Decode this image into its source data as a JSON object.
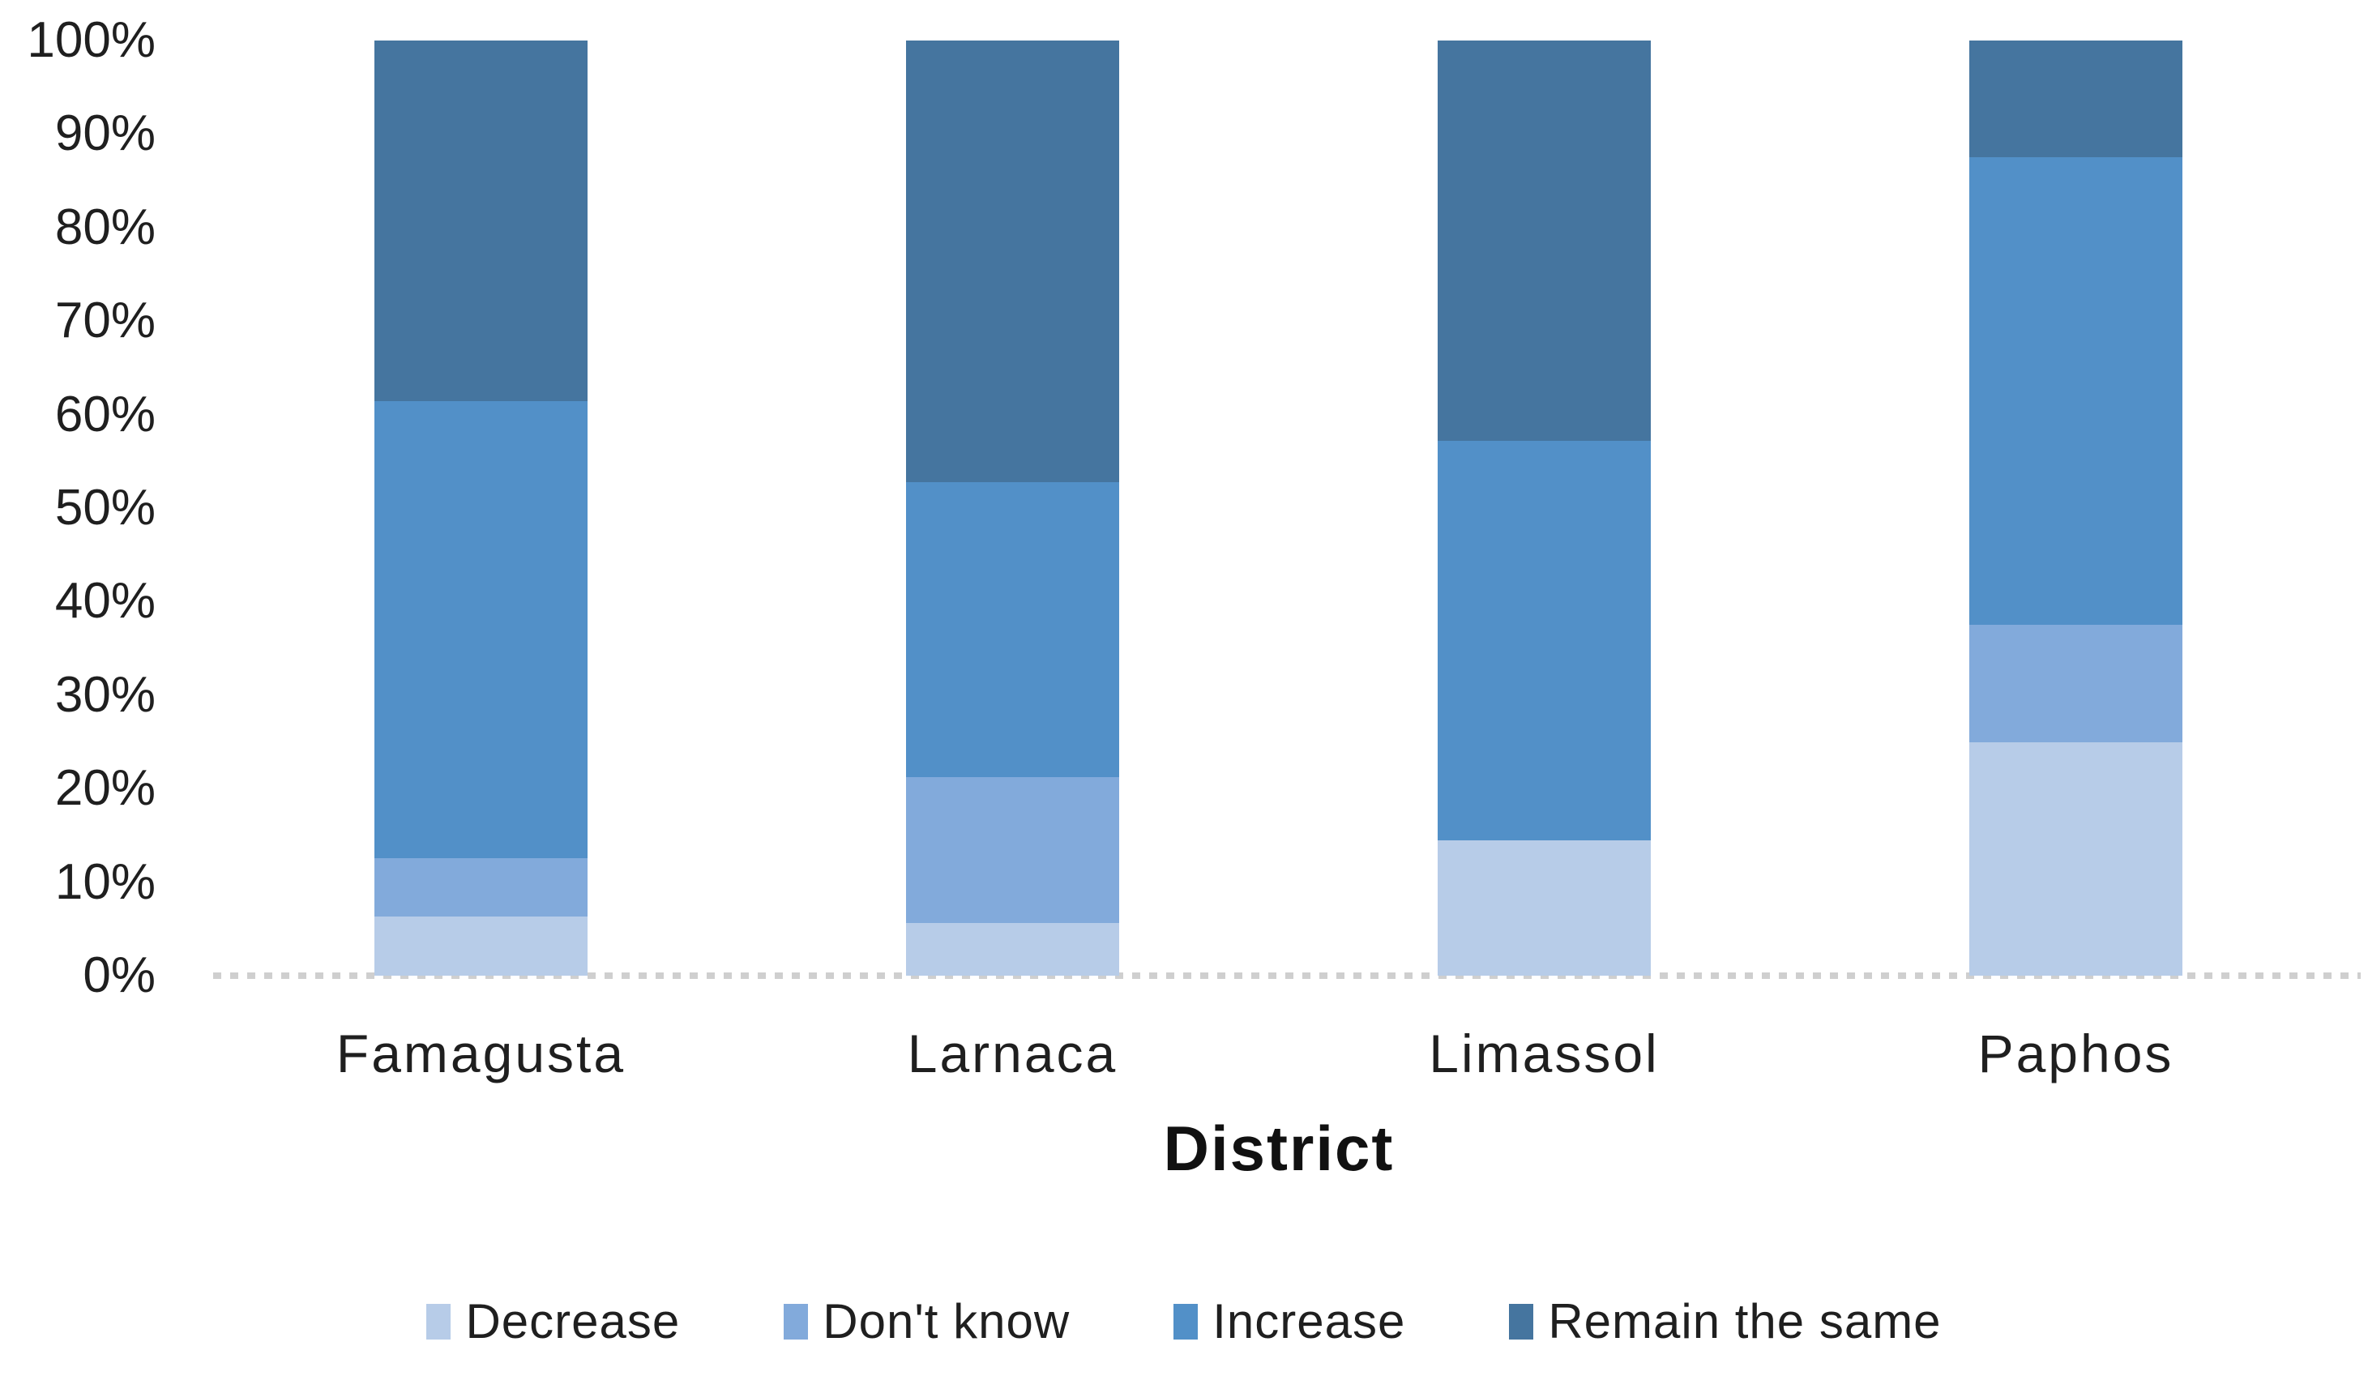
{
  "chart_data": {
    "type": "bar",
    "variant": "stacked-100-percent-column",
    "title": "",
    "xlabel": "District",
    "ylabel": "",
    "categories": [
      "Famagusta",
      "Larnaca",
      "Limassol",
      "Paphos"
    ],
    "series": [
      {
        "name": "Decrease",
        "color": "#B7CCE8",
        "values": [
          6.3,
          5.6,
          14.5,
          25.0
        ]
      },
      {
        "name": "Don't know",
        "color": "#82AADB",
        "values": [
          6.3,
          15.6,
          0.0,
          12.5
        ]
      },
      {
        "name": "Increase",
        "color": "#5290C8",
        "values": [
          48.8,
          31.6,
          42.7,
          50.0
        ]
      },
      {
        "name": "Remain the same",
        "color": "#45759F",
        "values": [
          38.6,
          47.2,
          42.8,
          12.5
        ]
      }
    ],
    "ylim": [
      0,
      100
    ],
    "yticks": [
      "0%",
      "10%",
      "20%",
      "30%",
      "40%",
      "50%",
      "60%",
      "70%",
      "80%",
      "90%",
      "100%"
    ],
    "grid": false,
    "legend_position": "bottom",
    "axis_text_color": "#1f1f1f",
    "baseline_color": "#cfcfcf"
  }
}
